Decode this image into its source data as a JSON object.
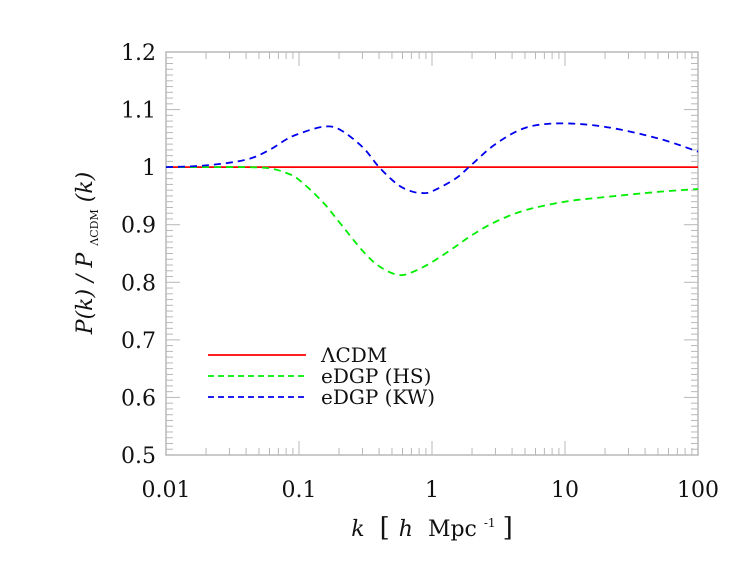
{
  "chart_data": {
    "type": "line",
    "title": "",
    "xlabel": "k [h Mpc^-1]",
    "ylabel": "P(k)/P_ΛCDM(k)",
    "xscale": "log",
    "xlim": [
      0.01,
      100
    ],
    "ylim": [
      0.5,
      1.2
    ],
    "xticks": [
      "0.01",
      "0.1",
      "1",
      "10",
      "100"
    ],
    "yticks": [
      "0.5",
      "0.6",
      "0.7",
      "0.8",
      "0.9",
      "1",
      "1.1",
      "1.2"
    ],
    "grid": false,
    "legend_position": "lower left",
    "series": [
      {
        "name": "ΛCDM",
        "color": "#ff0000",
        "style": "solid",
        "x": [
          0.01,
          100
        ],
        "y": [
          1.0,
          1.0
        ]
      },
      {
        "name": "eDGP (HS)",
        "color": "#00ee00",
        "style": "dashed",
        "x": [
          0.01,
          0.02,
          0.04,
          0.06,
          0.08,
          0.1,
          0.15,
          0.2,
          0.3,
          0.4,
          0.55,
          0.7,
          1.0,
          1.5,
          2.0,
          3.0,
          5.0,
          10.0,
          20.0,
          50.0,
          100.0
        ],
        "y": [
          1.0,
          1.0,
          1.0,
          0.998,
          0.99,
          0.978,
          0.94,
          0.905,
          0.855,
          0.828,
          0.813,
          0.817,
          0.835,
          0.862,
          0.882,
          0.905,
          0.925,
          0.94,
          0.948,
          0.957,
          0.962
        ]
      },
      {
        "name": "eDGP (KW)",
        "color": "#0000ee",
        "style": "dashed",
        "x": [
          0.01,
          0.02,
          0.04,
          0.06,
          0.08,
          0.1,
          0.15,
          0.2,
          0.3,
          0.4,
          0.55,
          0.7,
          0.85,
          1.0,
          1.5,
          2.0,
          3.0,
          5.0,
          9.0,
          20.0,
          50.0,
          100.0
        ],
        "y": [
          1.0,
          1.003,
          1.013,
          1.03,
          1.048,
          1.058,
          1.07,
          1.066,
          1.035,
          1.0,
          0.97,
          0.958,
          0.955,
          0.958,
          0.98,
          1.005,
          1.04,
          1.068,
          1.076,
          1.07,
          1.05,
          1.027
        ]
      }
    ]
  },
  "axes": {
    "x_title_italic": "k",
    "x_title_rest": "[",
    "x_title_h": "h",
    "x_title_units": "Mpc",
    "x_title_exp": "-1",
    "x_title_close": "]",
    "y_title_main": "P(k) / P",
    "y_title_sub": "ΛCDM",
    "y_title_tail": "(k)"
  },
  "legend": {
    "items": [
      {
        "label": "ΛCDM",
        "color": "#ff0000",
        "dash": "none"
      },
      {
        "label": "eDGP (HS)",
        "color": "#00ee00",
        "dash": "6,4"
      },
      {
        "label": "eDGP (KW)",
        "color": "#0000ee",
        "dash": "6,4"
      }
    ]
  }
}
